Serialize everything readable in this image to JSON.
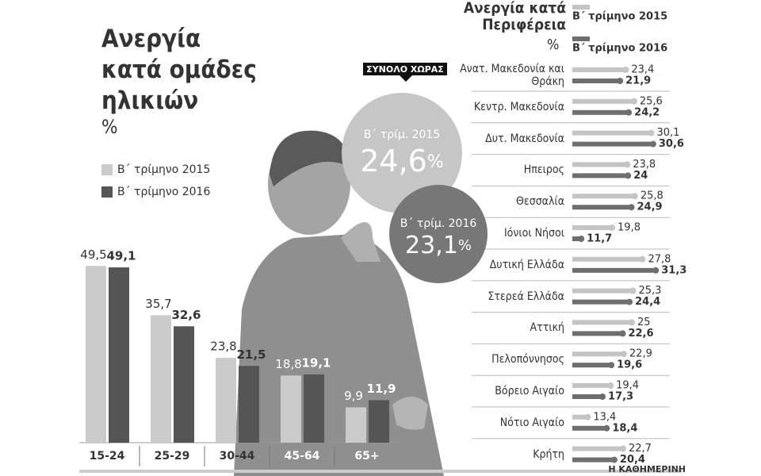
{
  "chart_data": [
    {
      "type": "bar",
      "title": "Ανεργία κατά ομάδες ηλικιών",
      "subtitle": "%",
      "categories": [
        "15-24",
        "25-29",
        "30-44",
        "45-64",
        "65+"
      ],
      "series": [
        {
          "name": "Β΄ τρίμηνο 2015",
          "color": "#cbcbcb",
          "values": [
            49.5,
            35.7,
            23.8,
            18.8,
            9.9
          ],
          "value_labels": [
            "49,5",
            "35,7",
            "23,8",
            "18,8",
            "9,9"
          ]
        },
        {
          "name": "Β΄ τρίμηνο 2016",
          "color": "#555555",
          "values": [
            49.1,
            32.6,
            21.5,
            19.1,
            11.9
          ],
          "value_labels": [
            "49,1",
            "32,6",
            "21,5",
            "19,1",
            "11,9"
          ]
        }
      ]
    },
    {
      "type": "hbar",
      "title": "Ανεργία κατά Περιφέρεια",
      "subtitle": "%",
      "categories": [
        "Ανατ. Μακεδονία και Θράκη",
        "Κεντρ. Μακεδονία",
        "Δυτ. Μακεδονία",
        "Ηπειρος",
        "Θεσσαλία",
        "Ιόνιοι Νήσοι",
        "Δυτική Ελλάδα",
        "Στερεά Ελλάδα",
        "Αττική",
        "Πελοπόννησος",
        "Βόρειο Αιγαίο",
        "Νότιο Αιγαίο",
        "Κρήτη"
      ],
      "series": [
        {
          "name": "Β΄ τρίμηνο 2015",
          "color": "#c4c4c4",
          "values": [
            23.4,
            25.6,
            30.1,
            23.8,
            25.8,
            19.8,
            27.8,
            25.3,
            25,
            22.9,
            19.4,
            13.4,
            22.7
          ],
          "value_labels": [
            "23,4",
            "25,6",
            "30,1",
            "23,8",
            "25,8",
            "19,8",
            "27,8",
            "25,3",
            "25",
            "22,9",
            "19,4",
            "13,4",
            "22,7"
          ]
        },
        {
          "name": "Β΄ τρίμηνο 2016",
          "color": "#6e6e6e",
          "values": [
            21.9,
            24.2,
            30.6,
            24,
            24.9,
            11.7,
            31.3,
            24.4,
            22.6,
            19.6,
            17.3,
            18.4,
            20.4
          ],
          "value_labels": [
            "21,9",
            "24,2",
            "30,6",
            "24",
            "24,9",
            "11,7",
            "31,3",
            "24,4",
            "22,6",
            "19,6",
            "17,3",
            "18,4",
            "20,4"
          ]
        }
      ]
    },
    {
      "type": "total",
      "title": "ΣΥΝΟΛΟ ΧΩΡΑΣ",
      "unit": "%",
      "categories": [
        "Β΄ τρίμ. 2015",
        "Β΄ τρίμ. 2016"
      ],
      "values": [
        24.6,
        23.1
      ],
      "value_labels": [
        "24,6",
        "23,1"
      ]
    }
  ],
  "source": "Η ΚΑΘΗΜΕΡΙΝΗ"
}
